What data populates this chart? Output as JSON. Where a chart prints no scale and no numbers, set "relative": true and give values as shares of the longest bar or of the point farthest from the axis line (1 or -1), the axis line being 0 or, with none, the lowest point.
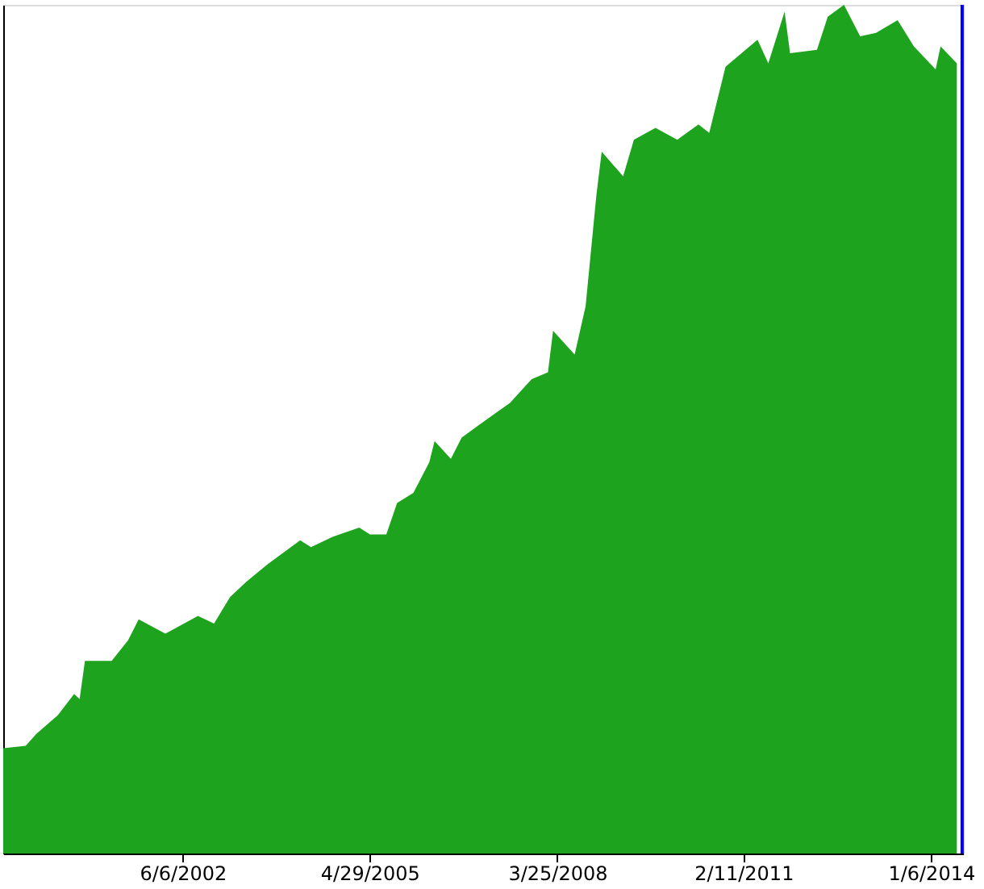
{
  "chart_data": {
    "type": "area",
    "relative": true,
    "x": [
      "1999-08-27",
      "2000-01",
      "2000-03",
      "2000-07",
      "2000-10",
      "2000-11",
      "2000-12",
      "2001-05",
      "2001-08",
      "2001-10",
      "2002-03",
      "2002-09",
      "2002-12",
      "2003-03",
      "2003-06",
      "2003-10",
      "2004-04",
      "2004-06",
      "2004-10",
      "2005-03",
      "2005-05",
      "2005-08",
      "2005-10",
      "2006-01",
      "2006-04",
      "2006-05",
      "2006-08",
      "2006-10",
      "2007-01",
      "2007-07",
      "2007-11",
      "2008-02",
      "2008-03",
      "2008-07",
      "2008-09",
      "2008-11",
      "2008-12",
      "2009-04",
      "2009-06",
      "2009-10",
      "2010-02",
      "2010-06",
      "2010-08",
      "2010-11",
      "2011-05",
      "2011-07",
      "2011-10",
      "2011-11",
      "2012-04",
      "2012-06",
      "2012-09",
      "2012-12",
      "2013-03",
      "2013-07",
      "2013-10",
      "2014-02",
      "2014-03",
      "2014-06"
    ],
    "series": [
      {
        "color": "#1ea31e",
        "values": [
          0.124,
          0.127,
          0.141,
          0.163,
          0.188,
          0.182,
          0.227,
          0.227,
          0.251,
          0.276,
          0.259,
          0.28,
          0.271,
          0.302,
          0.32,
          0.341,
          0.369,
          0.361,
          0.373,
          0.384,
          0.376,
          0.376,
          0.413,
          0.425,
          0.461,
          0.486,
          0.465,
          0.49,
          0.504,
          0.531,
          0.559,
          0.567,
          0.616,
          0.588,
          0.645,
          0.776,
          0.827,
          0.798,
          0.841,
          0.855,
          0.841,
          0.859,
          0.849,
          0.927,
          0.959,
          0.931,
          0.992,
          0.943,
          0.947,
          0.986,
          1.0,
          0.963,
          0.967,
          0.982,
          0.951,
          0.924,
          0.951,
          0.931
        ]
      }
    ],
    "xlim": [
      "1999-08-27",
      "2014-07-06"
    ],
    "xticks": [
      {
        "value": "2002-06-06",
        "label": "6/6/2002"
      },
      {
        "value": "2005-04-29",
        "label": "4/29/2005"
      },
      {
        "value": "2008-03-25",
        "label": "3/25/2008"
      },
      {
        "value": "2011-02-11",
        "label": "2/11/2011"
      },
      {
        "value": "2014-01-06",
        "label": "1/6/2014"
      }
    ],
    "ref_lines": [
      {
        "axis": "x",
        "value": "2014-07-01",
        "label": null,
        "color": "#0000ff"
      }
    ],
    "grid": false
  }
}
